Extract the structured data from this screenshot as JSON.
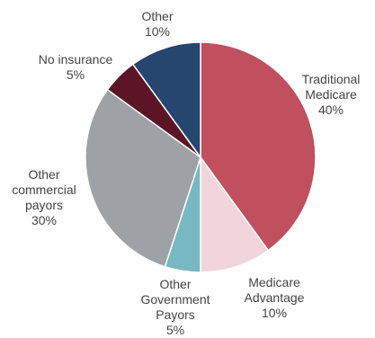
{
  "chart_data": {
    "type": "pie",
    "title": "",
    "slices": [
      {
        "label": [
          "Traditional",
          "Medicare"
        ],
        "value": 40,
        "value_text": "40%",
        "color": "#c0505e"
      },
      {
        "label": [
          "Medicare",
          "Advantage"
        ],
        "value": 10,
        "value_text": "10%",
        "color": "#f0d6dc"
      },
      {
        "label": [
          "Other",
          "Government",
          "Payors"
        ],
        "value": 5,
        "value_text": "5%",
        "color": "#77b8c2"
      },
      {
        "label": [
          "Other",
          "commercial",
          "payors"
        ],
        "value": 30,
        "value_text": "30%",
        "color": "#9ea1a6"
      },
      {
        "label": [
          "No insurance"
        ],
        "value": 5,
        "value_text": "5%",
        "color": "#5c1527"
      },
      {
        "label": [
          "Other"
        ],
        "value": 10,
        "value_text": "10%",
        "color": "#26456f"
      }
    ],
    "start_angle_deg": 0,
    "direction": "clockwise"
  }
}
